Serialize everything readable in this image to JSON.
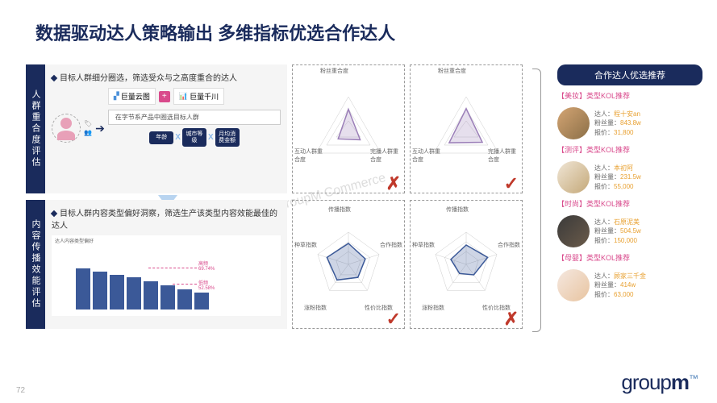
{
  "title": "数据驱动达人策略输出 多维指标优选合作达人",
  "page": "72",
  "logo": {
    "text": "group",
    "bold": "m",
    "sup": "™"
  },
  "watermark": "GroupM Commerce",
  "tabs": {
    "t1": "人群重合度评估",
    "t2": "内容传播效能评估"
  },
  "sect1": {
    "head": "目标人群细分圈选，筛选受众与之高度重合的达人",
    "brand1": "巨量云图",
    "brand2": "巨量千川",
    "desc": "在字节系产品中圈选目标人群",
    "pills": [
      "年龄",
      "城市等级",
      "月均消费金额"
    ]
  },
  "sect2": {
    "head": "目标人群内容类型偏好洞察，筛选生产该类型内容效能最佳的达人",
    "chartTitle": "达人内容类型偏好",
    "bars": [
      85,
      78,
      72,
      66,
      58,
      50,
      42,
      35
    ],
    "barColor": "#3b5998",
    "anno1": "高频",
    "anno1v": "69.74%",
    "anno2": "低频",
    "anno2v": "52.58%"
  },
  "radarTop": {
    "labels": [
      "粉丝重合度",
      "完播人群重合度",
      "互动人群重合度"
    ],
    "shape1": [
      70,
      40,
      35
    ],
    "shape2": [
      72,
      55,
      58
    ],
    "color": "#9b7fb8"
  },
  "radarBot": {
    "labels": [
      "传播指数",
      "合作指数",
      "性价比指数",
      "涨粉指数",
      "种草指数"
    ],
    "shape1": [
      65,
      55,
      50,
      60,
      70
    ],
    "shape2": [
      60,
      70,
      40,
      35,
      50
    ],
    "color": "#3b5998"
  },
  "side": {
    "head": "合作达人优选推荐",
    "recs": [
      {
        "tag": "【美妆】类型KOL推荐",
        "name": "程十安an",
        "fans": "843.8w",
        "price": "31,800"
      },
      {
        "tag": "【测评】类型KOL推荐",
        "name": "本初阿",
        "fans": "231.5w",
        "price": "55,000"
      },
      {
        "tag": "【时尚】类型KOL推荐",
        "name": "石原泥美",
        "fans": "504.5w",
        "price": "150,000"
      },
      {
        "tag": "【母婴】类型KOL推荐",
        "name": "顾家三千金",
        "fans": "414w",
        "price": "63,000"
      }
    ],
    "lbl": {
      "name": "达人：",
      "fans": "粉丝量：",
      "price": "报价："
    }
  }
}
